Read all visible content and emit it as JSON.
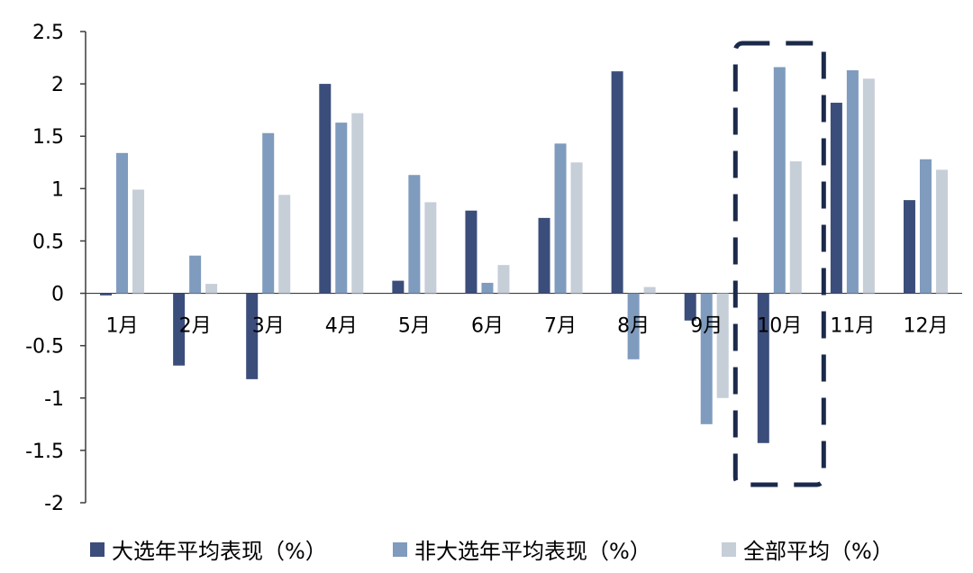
{
  "chart_data": {
    "type": "bar",
    "categories": [
      "1月",
      "2月",
      "3月",
      "4月",
      "5月",
      "6月",
      "7月",
      "8月",
      "9月",
      "10月",
      "11月",
      "12月"
    ],
    "series": [
      {
        "name": "大选年平均表现（%）",
        "color": "#3b4d7a",
        "values": [
          -0.02,
          -0.69,
          -0.82,
          2.0,
          0.12,
          0.79,
          0.72,
          2.12,
          -0.26,
          -1.43,
          1.82,
          0.89
        ]
      },
      {
        "name": "非大选年平均表现（%）",
        "color": "#7f9bbd",
        "values": [
          1.34,
          0.36,
          1.53,
          1.63,
          1.13,
          0.1,
          1.43,
          -0.63,
          -1.25,
          2.16,
          2.13,
          1.28
        ]
      },
      {
        "name": "全部平均（%）",
        "color": "#c6ced8",
        "values": [
          0.99,
          0.09,
          0.94,
          1.72,
          0.87,
          0.27,
          1.25,
          0.06,
          -1.0,
          1.26,
          2.05,
          1.18
        ]
      }
    ],
    "yticks": [
      "2.5",
      "2",
      "1.5",
      "1",
      "0.5",
      "0",
      "-0.5",
      "-1",
      "-1.5",
      "-2"
    ],
    "ylim": [
      -2,
      2.5
    ],
    "highlight_category": "10月",
    "grid": false,
    "legend_position": "bottom"
  }
}
